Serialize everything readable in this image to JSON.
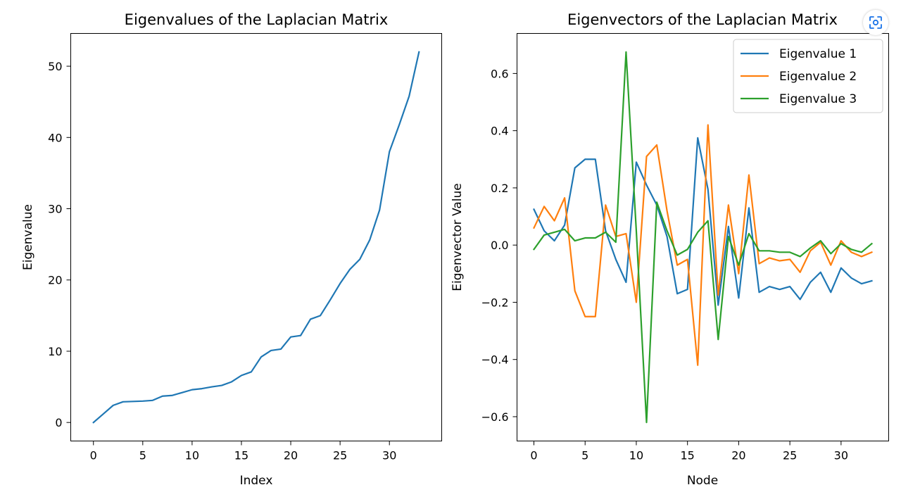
{
  "chart_data": [
    {
      "type": "line",
      "title": "Eigenvalues of the Laplacian Matrix",
      "xlabel": "Index",
      "ylabel": "Eigenvalue",
      "xlim": [
        -2.3,
        35.3
      ],
      "ylim": [
        -2.6,
        54.6
      ],
      "xticks": [
        0,
        5,
        10,
        15,
        20,
        25,
        30
      ],
      "yticks": [
        0,
        10,
        20,
        30,
        40,
        50
      ],
      "xtick_labels": [
        "0",
        "5",
        "10",
        "15",
        "20",
        "25",
        "30"
      ],
      "ytick_labels": [
        "0",
        "10",
        "20",
        "30",
        "40",
        "50"
      ],
      "grid": false,
      "series": [
        {
          "color": "#1f77b4",
          "x": [
            0,
            1,
            2,
            3,
            4,
            5,
            6,
            7,
            8,
            9,
            10,
            11,
            12,
            13,
            14,
            15,
            16,
            17,
            18,
            19,
            20,
            21,
            22,
            23,
            24,
            25,
            26,
            27,
            28,
            29,
            30,
            31,
            32,
            33
          ],
          "y": [
            0,
            1.2,
            2.4,
            2.9,
            2.95,
            3.0,
            3.1,
            3.7,
            3.8,
            4.2,
            4.6,
            4.75,
            5.0,
            5.2,
            5.7,
            6.6,
            7.1,
            9.2,
            10.1,
            10.3,
            12.0,
            12.2,
            14.5,
            15.0,
            17.2,
            19.5,
            21.5,
            22.9,
            25.6,
            29.8,
            38.0,
            41.8,
            45.8,
            52.0
          ]
        }
      ]
    },
    {
      "type": "line",
      "title": "Eigenvectors of the Laplacian Matrix",
      "xlabel": "Node",
      "ylabel": "Eigenvector Value",
      "xlim": [
        -1.65,
        34.65
      ],
      "ylim": [
        -0.685,
        0.74
      ],
      "xticks": [
        0,
        5,
        10,
        15,
        20,
        25,
        30
      ],
      "yticks": [
        -0.6,
        -0.4,
        -0.2,
        0.0,
        0.2,
        0.4,
        0.6
      ],
      "xtick_labels": [
        "0",
        "5",
        "10",
        "15",
        "20",
        "25",
        "30"
      ],
      "ytick_labels": [
        "−0.6",
        "−0.4",
        "−0.2",
        "0.0",
        "0.2",
        "0.4",
        "0.6"
      ],
      "grid": false,
      "legend_position": "top-right",
      "series": [
        {
          "name": "Eigenvalue 1",
          "color": "#1f77b4",
          "x": [
            0,
            1,
            2,
            3,
            4,
            5,
            6,
            7,
            8,
            9,
            10,
            11,
            12,
            13,
            14,
            15,
            16,
            17,
            18,
            19,
            20,
            21,
            22,
            23,
            24,
            25,
            26,
            27,
            28,
            29,
            30,
            31,
            32,
            33
          ],
          "y": [
            0.125,
            0.05,
            0.015,
            0.07,
            0.27,
            0.3,
            0.3,
            0.05,
            -0.05,
            -0.13,
            0.29,
            0.21,
            0.14,
            0.03,
            -0.17,
            -0.155,
            0.375,
            0.195,
            -0.21,
            0.065,
            -0.185,
            0.13,
            -0.165,
            -0.145,
            -0.155,
            -0.145,
            -0.19,
            -0.13,
            -0.095,
            -0.165,
            -0.08,
            -0.115,
            -0.135,
            -0.125
          ]
        },
        {
          "name": "Eigenvalue 2",
          "color": "#ff7f0e",
          "x": [
            0,
            1,
            2,
            3,
            4,
            5,
            6,
            7,
            8,
            9,
            10,
            11,
            12,
            13,
            14,
            15,
            16,
            17,
            18,
            19,
            20,
            21,
            22,
            23,
            24,
            25,
            26,
            27,
            28,
            29,
            30,
            31,
            32,
            33
          ],
          "y": [
            0.06,
            0.135,
            0.085,
            0.165,
            -0.16,
            -0.25,
            -0.25,
            0.14,
            0.03,
            0.04,
            -0.2,
            0.31,
            0.35,
            0.12,
            -0.07,
            -0.05,
            -0.42,
            0.42,
            -0.175,
            0.14,
            -0.1,
            0.245,
            -0.065,
            -0.045,
            -0.055,
            -0.05,
            -0.095,
            -0.02,
            0.01,
            -0.07,
            0.015,
            -0.025,
            -0.04,
            -0.025
          ]
        },
        {
          "name": "Eigenvalue 3",
          "color": "#2ca02c",
          "x": [
            0,
            1,
            2,
            3,
            4,
            5,
            6,
            7,
            8,
            9,
            10,
            11,
            12,
            13,
            14,
            15,
            16,
            17,
            18,
            19,
            20,
            21,
            22,
            23,
            24,
            25,
            26,
            27,
            28,
            29,
            30,
            31,
            32,
            33
          ],
          "y": [
            -0.015,
            0.035,
            0.045,
            0.055,
            0.015,
            0.025,
            0.025,
            0.045,
            0.01,
            0.675,
            0.05,
            -0.62,
            0.15,
            0.05,
            -0.035,
            -0.015,
            0.045,
            0.085,
            -0.33,
            0.03,
            -0.07,
            0.04,
            -0.02,
            -0.02,
            -0.025,
            -0.025,
            -0.04,
            -0.01,
            0.015,
            -0.03,
            0.005,
            -0.015,
            -0.025,
            0.005
          ]
        }
      ]
    }
  ]
}
